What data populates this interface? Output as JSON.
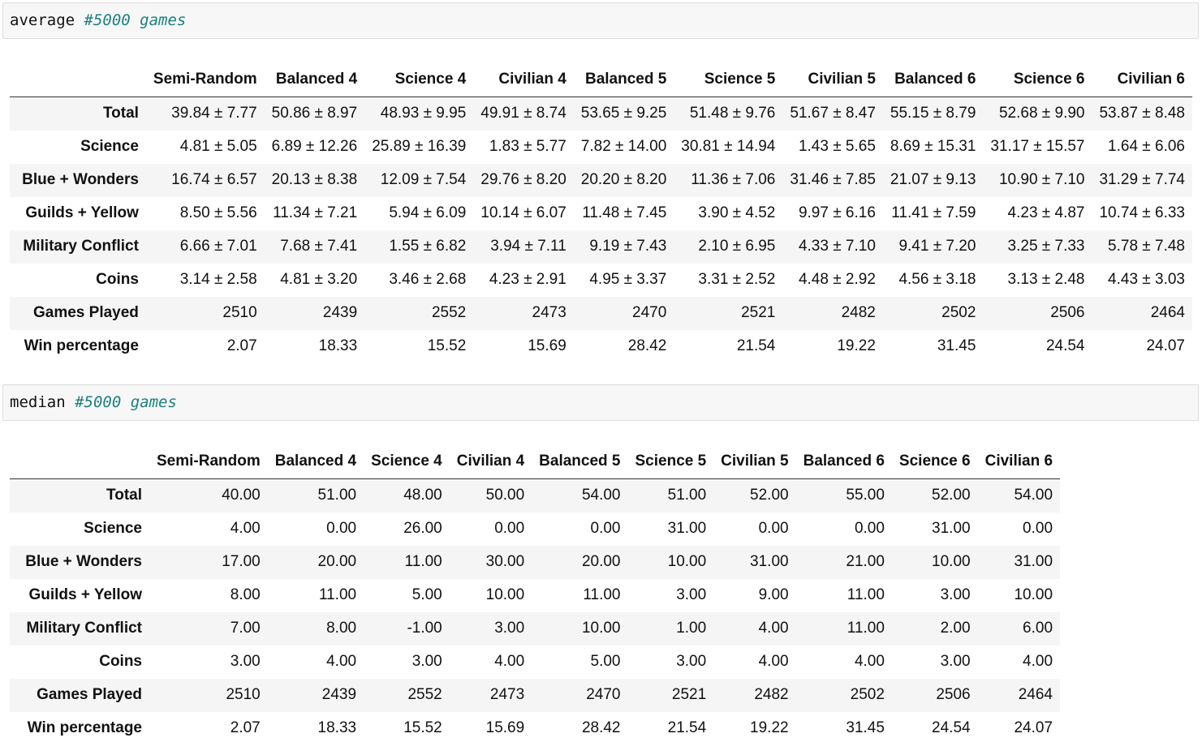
{
  "cells": [
    {
      "code_keyword": "average",
      "code_comment": "#5000 games",
      "columns": [
        "Semi-Random",
        "Balanced 4",
        "Science 4",
        "Civilian 4",
        "Balanced 5",
        "Science 5",
        "Civilian 5",
        "Balanced 6",
        "Science 6",
        "Civilian 6"
      ],
      "rows": [
        {
          "label": "Total",
          "values": [
            "39.84 ± 7.77",
            "50.86 ± 8.97",
            "48.93 ± 9.95",
            "49.91 ± 8.74",
            "53.65 ± 9.25",
            "51.48 ± 9.76",
            "51.67 ± 8.47",
            "55.15 ± 8.79",
            "52.68 ± 9.90",
            "53.87 ± 8.48"
          ]
        },
        {
          "label": "Science",
          "values": [
            "4.81 ± 5.05",
            "6.89 ± 12.26",
            "25.89 ± 16.39",
            "1.83 ± 5.77",
            "7.82 ± 14.00",
            "30.81 ± 14.94",
            "1.43 ± 5.65",
            "8.69 ± 15.31",
            "31.17 ± 15.57",
            "1.64 ± 6.06"
          ]
        },
        {
          "label": "Blue + Wonders",
          "values": [
            "16.74 ± 6.57",
            "20.13 ± 8.38",
            "12.09 ± 7.54",
            "29.76 ± 8.20",
            "20.20 ± 8.20",
            "11.36 ± 7.06",
            "31.46 ± 7.85",
            "21.07 ± 9.13",
            "10.90 ± 7.10",
            "31.29 ± 7.74"
          ]
        },
        {
          "label": "Guilds + Yellow",
          "values": [
            "8.50 ± 5.56",
            "11.34 ± 7.21",
            "5.94 ± 6.09",
            "10.14 ± 6.07",
            "11.48 ± 7.45",
            "3.90 ± 4.52",
            "9.97 ± 6.16",
            "11.41 ± 7.59",
            "4.23 ± 4.87",
            "10.74 ± 6.33"
          ]
        },
        {
          "label": "Military Conflict",
          "values": [
            "6.66 ± 7.01",
            "7.68 ± 7.41",
            "1.55 ± 6.82",
            "3.94 ± 7.11",
            "9.19 ± 7.43",
            "2.10 ± 6.95",
            "4.33 ± 7.10",
            "9.41 ± 7.20",
            "3.25 ± 7.33",
            "5.78 ± 7.48"
          ]
        },
        {
          "label": "Coins",
          "values": [
            "3.14 ± 2.58",
            "4.81 ± 3.20",
            "3.46 ± 2.68",
            "4.23 ± 2.91",
            "4.95 ± 3.37",
            "3.31 ± 2.52",
            "4.48 ± 2.92",
            "4.56 ± 3.18",
            "3.13 ± 2.48",
            "4.43 ± 3.03"
          ]
        },
        {
          "label": "Games Played",
          "values": [
            "2510",
            "2439",
            "2552",
            "2473",
            "2470",
            "2521",
            "2482",
            "2502",
            "2506",
            "2464"
          ]
        },
        {
          "label": "Win percentage",
          "values": [
            "2.07",
            "18.33",
            "15.52",
            "15.69",
            "28.42",
            "21.54",
            "19.22",
            "31.45",
            "24.54",
            "24.07"
          ]
        }
      ]
    },
    {
      "code_keyword": "median",
      "code_comment": "#5000 games",
      "columns": [
        "Semi-Random",
        "Balanced 4",
        "Science 4",
        "Civilian 4",
        "Balanced 5",
        "Science 5",
        "Civilian 5",
        "Balanced 6",
        "Science 6",
        "Civilian 6"
      ],
      "rows": [
        {
          "label": "Total",
          "values": [
            "40.00",
            "51.00",
            "48.00",
            "50.00",
            "54.00",
            "51.00",
            "52.00",
            "55.00",
            "52.00",
            "54.00"
          ]
        },
        {
          "label": "Science",
          "values": [
            "4.00",
            "0.00",
            "26.00",
            "0.00",
            "0.00",
            "31.00",
            "0.00",
            "0.00",
            "31.00",
            "0.00"
          ]
        },
        {
          "label": "Blue + Wonders",
          "values": [
            "17.00",
            "20.00",
            "11.00",
            "30.00",
            "20.00",
            "10.00",
            "31.00",
            "21.00",
            "10.00",
            "31.00"
          ]
        },
        {
          "label": "Guilds + Yellow",
          "values": [
            "8.00",
            "11.00",
            "5.00",
            "10.00",
            "11.00",
            "3.00",
            "9.00",
            "11.00",
            "3.00",
            "10.00"
          ]
        },
        {
          "label": "Military Conflict",
          "values": [
            "7.00",
            "8.00",
            "-1.00",
            "3.00",
            "10.00",
            "1.00",
            "4.00",
            "11.00",
            "2.00",
            "6.00"
          ]
        },
        {
          "label": "Coins",
          "values": [
            "3.00",
            "4.00",
            "3.00",
            "4.00",
            "5.00",
            "3.00",
            "4.00",
            "4.00",
            "3.00",
            "4.00"
          ]
        },
        {
          "label": "Games Played",
          "values": [
            "2510",
            "2439",
            "2552",
            "2473",
            "2470",
            "2521",
            "2482",
            "2502",
            "2506",
            "2464"
          ]
        },
        {
          "label": "Win percentage",
          "values": [
            "2.07",
            "18.33",
            "15.52",
            "15.69",
            "28.42",
            "21.54",
            "19.22",
            "31.45",
            "24.54",
            "24.07"
          ]
        }
      ]
    }
  ]
}
